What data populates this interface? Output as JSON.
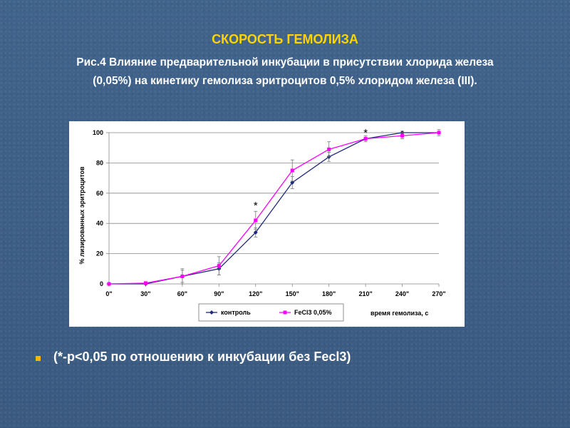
{
  "slide": {
    "title": "СКОРОСТЬ ГЕМОЛИЗА",
    "caption_line1": "Рис.4 Влияние предварительной инкубации в присутствии хлорида железа",
    "caption_line2": "(0,05%) на кинетику гемолиза эритроцитов 0,5% хлоридом железа (III).",
    "footnote": "(*-p<0,05 по отношению к инкубации без Fecl3)"
  },
  "colors": {
    "background": "#3d5f86",
    "title": "#ffd400",
    "bullet": "#f7b500",
    "control_series": "#1f2a7a",
    "fecl3_series": "#ff00ff"
  },
  "chart_data": {
    "type": "line",
    "xlabel": "время гемолиза, с",
    "ylabel": "% лизированных эритроцитов",
    "categories": [
      "0\"",
      "30\"",
      "60\"",
      "90\"",
      "120\"",
      "150\"",
      "180\"",
      "210\"",
      "240\"",
      "270\""
    ],
    "ylim": [
      0,
      100
    ],
    "yticks": [
      0,
      20,
      40,
      60,
      80,
      100
    ],
    "grid": true,
    "legend_position": "bottom-left",
    "series": [
      {
        "name": "контроль",
        "values": [
          0,
          0,
          5,
          10,
          34,
          67,
          84,
          96,
          100,
          100
        ],
        "errors": [
          0,
          1,
          5,
          4,
          3,
          4,
          3,
          1,
          1,
          1
        ]
      },
      {
        "name": "FeCl3 0,05%",
        "values": [
          0,
          0.5,
          5,
          12,
          42,
          75,
          89,
          96,
          98,
          100
        ],
        "errors": [
          0,
          1,
          4,
          6,
          6,
          7,
          5,
          2,
          2,
          2
        ]
      }
    ],
    "annotations": [
      {
        "text": "*",
        "category": "120\"",
        "y": 52
      },
      {
        "text": "*",
        "category": "210\"",
        "y": 100
      }
    ]
  }
}
